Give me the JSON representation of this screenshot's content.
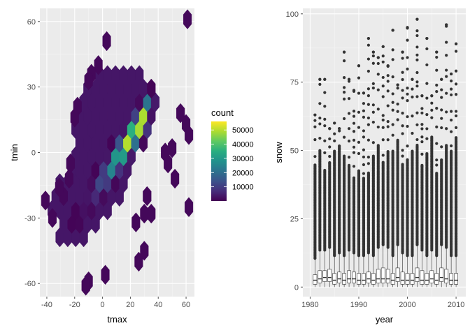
{
  "colors": {
    "panel": "#EBEBEB",
    "grid_major": "#FFFFFF",
    "grid_minor": "#F5F5F5",
    "tick": "#4D4D4D",
    "box_fill": "#FFFFFF",
    "box_line": "#333333",
    "outlier": "#333333",
    "viridis": [
      "#440154",
      "#472D7B",
      "#3B528B",
      "#2C728E",
      "#21918C",
      "#28AE80",
      "#5EC962",
      "#ADDC30",
      "#FDE725"
    ]
  },
  "chart_data": [
    {
      "type": "hexbin",
      "xlabel": "tmax",
      "ylabel": "tmin",
      "xlim": [
        -45,
        66
      ],
      "ylim": [
        -66,
        66
      ],
      "x_ticks": [
        -40,
        -20,
        0,
        20,
        40,
        60
      ],
      "y_ticks": [
        -60,
        -30,
        0,
        30,
        60
      ],
      "grid": true,
      "legend": {
        "title": "count",
        "position": "right",
        "range": [
          1,
          56000
        ],
        "breaks": [
          10000,
          20000,
          30000,
          40000,
          50000
        ]
      },
      "core": {
        "slope": 0.95,
        "intercept": -12.5,
        "x_range": [
          -30,
          34
        ],
        "peak_x": 25,
        "peak_count": 55000,
        "spread": 22
      },
      "region_polygon": [
        [
          -40,
          -22
        ],
        [
          -32,
          -32
        ],
        [
          -31,
          -43
        ],
        [
          -8,
          -43
        ],
        [
          -8,
          -35
        ],
        [
          10,
          -24
        ],
        [
          24,
          -3
        ],
        [
          40,
          15
        ],
        [
          43,
          24
        ],
        [
          37,
          30
        ],
        [
          26,
          37
        ],
        [
          9,
          37
        ],
        [
          -4,
          40
        ],
        [
          -14,
          24
        ],
        [
          -21,
          12
        ],
        [
          -22,
          0
        ],
        [
          -26,
          -10
        ],
        [
          -37,
          -18
        ]
      ],
      "outliers": [
        [
          61,
          61
        ],
        [
          3,
          51
        ],
        [
          -3,
          40
        ],
        [
          -8,
          36
        ],
        [
          -10,
          33
        ],
        [
          -18,
          21
        ],
        [
          -20,
          16
        ],
        [
          56,
          18
        ],
        [
          60,
          13
        ],
        [
          62,
          8
        ],
        [
          50,
          2
        ],
        [
          45,
          0
        ],
        [
          47,
          -5
        ],
        [
          -28,
          -20
        ],
        [
          -24,
          -12
        ],
        [
          52,
          -12
        ],
        [
          32,
          -20
        ],
        [
          35,
          -28
        ],
        [
          62,
          -25
        ],
        [
          24,
          -32
        ],
        [
          30,
          -28
        ],
        [
          -23,
          -5
        ],
        [
          30,
          -45
        ],
        [
          26,
          -50
        ],
        [
          2,
          -56
        ],
        [
          -10,
          -59
        ],
        [
          -12,
          -61
        ],
        [
          -41,
          -22
        ],
        [
          -36,
          -30
        ],
        [
          -31,
          -16
        ]
      ]
    },
    {
      "type": "boxplot",
      "xlabel": "year",
      "ylabel": "snow",
      "xlim": [
        1978.5,
        2012.0
      ],
      "ylim": [
        -3.5,
        102
      ],
      "x_ticks": [
        1980,
        1990,
        2000,
        2010
      ],
      "y_ticks": [
        0,
        25,
        50,
        75,
        100
      ],
      "grid": true,
      "years": [
        1981,
        1982,
        1983,
        1984,
        1985,
        1986,
        1987,
        1988,
        1989,
        1990,
        1991,
        1992,
        1993,
        1994,
        1995,
        1996,
        1997,
        1998,
        1999,
        2000,
        2001,
        2002,
        2003,
        2004,
        2005,
        2006,
        2007,
        2008,
        2009,
        2010
      ],
      "q1": [
        1.0,
        1.5,
        2.0,
        2.0,
        1.0,
        1.5,
        1.0,
        1.5,
        1.5,
        1.0,
        1.0,
        1.5,
        1.0,
        1.5,
        1.5,
        1.5,
        1.0,
        2.0,
        1.0,
        1.0,
        1.0,
        2.0,
        1.0,
        1.0,
        1.5,
        1.0,
        2.0,
        1.5,
        1.0,
        1.0
      ],
      "median": [
        2.5,
        3.0,
        3.5,
        3.5,
        2.5,
        3.0,
        2.5,
        3.0,
        3.0,
        2.5,
        2.5,
        3.0,
        2.5,
        3.0,
        3.0,
        3.0,
        2.5,
        3.5,
        2.5,
        2.5,
        2.5,
        3.5,
        2.5,
        2.5,
        3.0,
        2.5,
        3.5,
        3.0,
        2.5,
        2.5
      ],
      "q3": [
        4.5,
        6.0,
        6.0,
        6.5,
        5.0,
        5.5,
        5.0,
        6.0,
        5.5,
        5.0,
        5.0,
        5.5,
        5.0,
        6.5,
        7.0,
        6.5,
        5.0,
        7.0,
        5.5,
        5.0,
        5.0,
        7.0,
        6.0,
        5.0,
        6.0,
        5.0,
        7.0,
        6.5,
        5.0,
        5.0
      ],
      "whisker_high": [
        10,
        13,
        13,
        14,
        11,
        12,
        11,
        13,
        12,
        11,
        11,
        12,
        11,
        14,
        15,
        14,
        11,
        15,
        12,
        11,
        11,
        15,
        13,
        11,
        13,
        11,
        15,
        14,
        11,
        11
      ],
      "dense_top": [
        45,
        50,
        43,
        46,
        50,
        52,
        48,
        45,
        40,
        43,
        40,
        42,
        48,
        52,
        46,
        50,
        50,
        54,
        45,
        47,
        50,
        52,
        45,
        49,
        55,
        42,
        47,
        52,
        50,
        55
      ],
      "max_outlier": [
        63,
        76,
        76,
        58,
        60,
        58,
        86,
        76,
        72,
        81,
        71,
        91,
        86,
        84,
        88,
        81,
        94,
        74,
        86,
        95,
        76,
        98,
        70,
        91,
        70,
        86,
        76,
        96,
        78,
        89
      ]
    }
  ]
}
